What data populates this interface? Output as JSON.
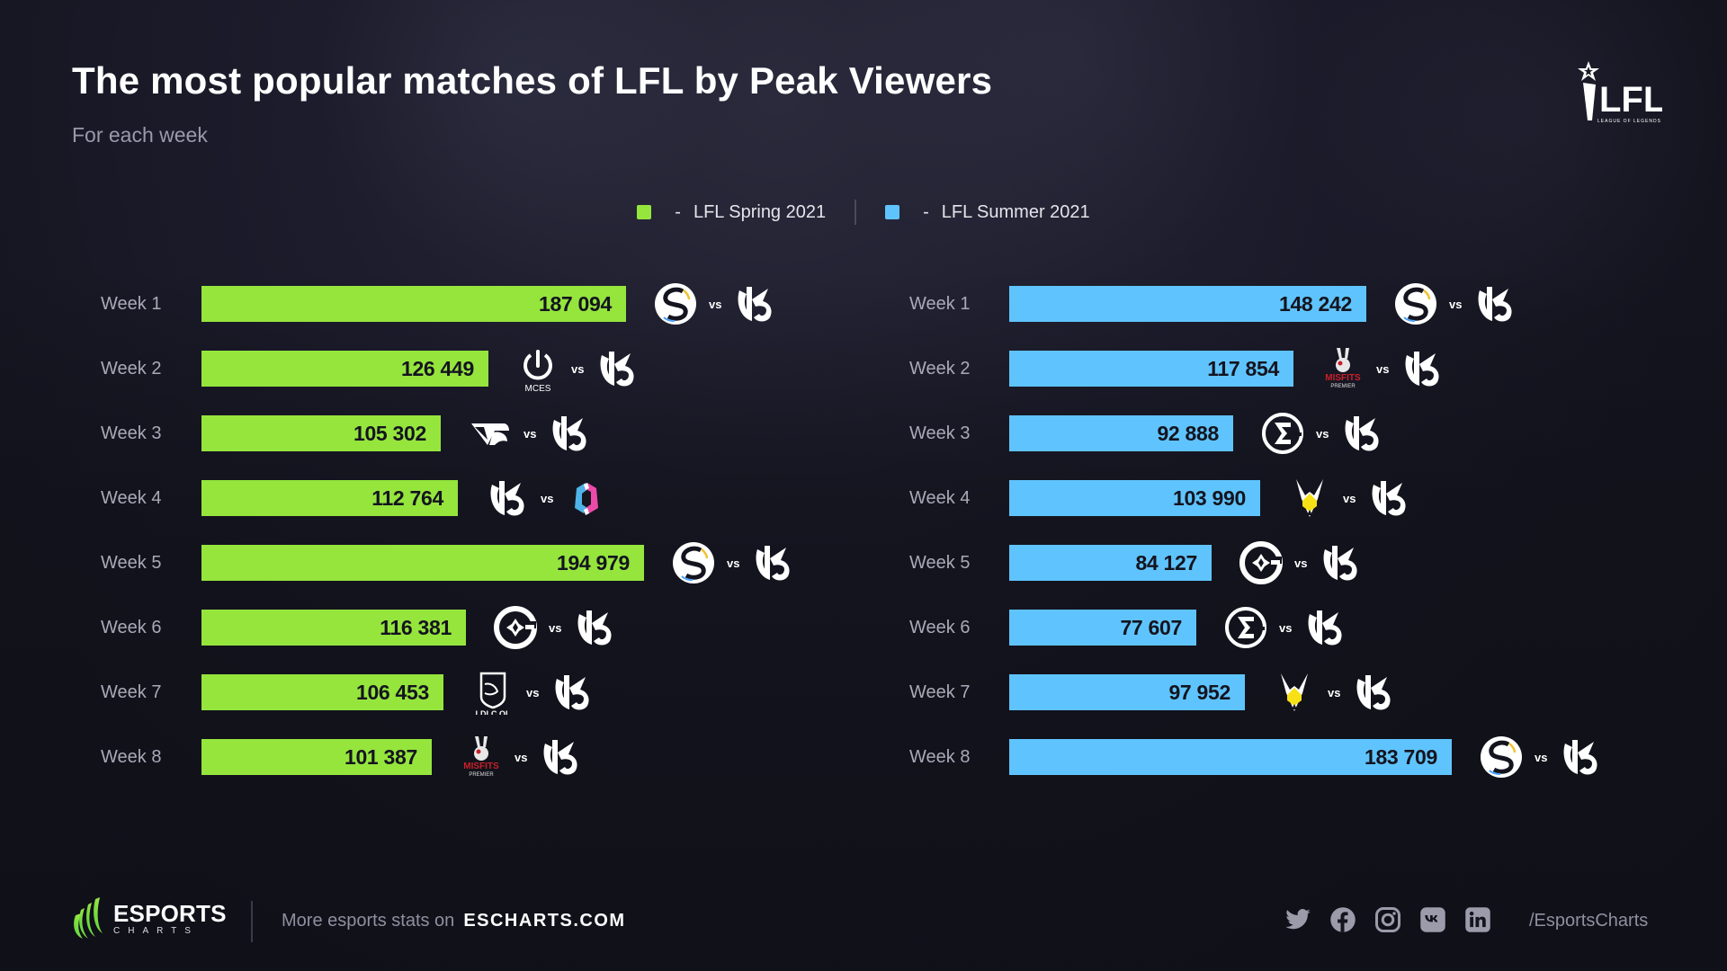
{
  "header": {
    "title": "The most popular matches of LFL by Peak Viewers",
    "subtitle": "For each week",
    "brand_logo": "lfl-league-of-legends-logo"
  },
  "legend": {
    "items": [
      {
        "label": "LFL Spring 2021",
        "dash": "-",
        "color": "#95e53d"
      },
      {
        "label": "LFL Summer 2021",
        "dash": "-",
        "color": "#5fc4fd"
      }
    ]
  },
  "vs_label": "vs",
  "chart_data": [
    {
      "type": "bar",
      "orientation": "horizontal",
      "title": "LFL Spring 2021",
      "metric": "Peak Viewers",
      "color": "#95e53d",
      "categories": [
        "Week 1",
        "Week 2",
        "Week 3",
        "Week 4",
        "Week 5",
        "Week 6",
        "Week 7",
        "Week 8"
      ],
      "values": [
        187094,
        126449,
        105302,
        112764,
        194979,
        116381,
        106453,
        101387
      ],
      "value_labels": [
        "187 094",
        "126 449",
        "105 302",
        "112 764",
        "194 979",
        "116 381",
        "106 453",
        "101 387"
      ],
      "matchups": [
        {
          "team1": "solary",
          "team2": "karmine-corp"
        },
        {
          "team1": "mces",
          "team2": "karmine-corp",
          "team1_caption": "MCES"
        },
        {
          "team1": "team-oplon",
          "team2": "karmine-corp"
        },
        {
          "team1": "karmine-corp",
          "team2": "bds-academy"
        },
        {
          "team1": "solary",
          "team2": "karmine-corp"
        },
        {
          "team1": "gamers-origin",
          "team2": "karmine-corp"
        },
        {
          "team1": "ldlc-ol",
          "team2": "karmine-corp",
          "team1_caption": "LDLC OL"
        },
        {
          "team1": "misfits-premier",
          "team2": "karmine-corp"
        }
      ]
    },
    {
      "type": "bar",
      "orientation": "horizontal",
      "title": "LFL Summer 2021",
      "metric": "Peak Viewers",
      "color": "#5fc4fd",
      "categories": [
        "Week 1",
        "Week 2",
        "Week 3",
        "Week 4",
        "Week 5",
        "Week 6",
        "Week 7",
        "Week 8"
      ],
      "values": [
        148242,
        117854,
        92888,
        103990,
        84127,
        77607,
        97952,
        183709
      ],
      "value_labels": [
        "148 242",
        "117 854",
        "92 888",
        "103 990",
        "84 127",
        "77 607",
        "97 952",
        "183 709"
      ],
      "matchups": [
        {
          "team1": "solary",
          "team2": "karmine-corp"
        },
        {
          "team1": "misfits-premier",
          "team2": "karmine-corp"
        },
        {
          "team1": "team-sigma",
          "team2": "karmine-corp"
        },
        {
          "team1": "vitality-bee",
          "team2": "karmine-corp"
        },
        {
          "team1": "gamers-origin",
          "team2": "karmine-corp"
        },
        {
          "team1": "team-sigma",
          "team2": "karmine-corp"
        },
        {
          "team1": "vitality-bee",
          "team2": "karmine-corp"
        },
        {
          "team1": "solary",
          "team2": "karmine-corp"
        }
      ]
    }
  ],
  "footer": {
    "brand_main": "ESPORTS",
    "brand_sub": "CHARTS",
    "more_stats_text": "More esports stats on",
    "site": "ESCHARTS.COM",
    "socials": [
      "twitter-icon",
      "facebook-icon",
      "instagram-icon",
      "vk-icon",
      "linkedin-icon"
    ],
    "handle": "/EsportsCharts"
  }
}
